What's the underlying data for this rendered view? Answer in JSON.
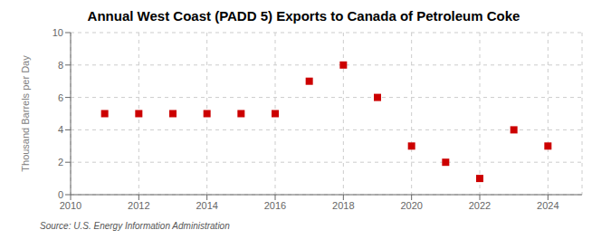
{
  "chart_data": {
    "type": "scatter",
    "title": "Annual West Coast (PADD 5) Exports to Canada of Petroleum Coke",
    "ylabel": "Thousand Barrels per Day",
    "annotation": "Source: U.S. Energy Information Administration",
    "x": [
      2011,
      2012,
      2013,
      2014,
      2015,
      2016,
      2017,
      2018,
      2019,
      2020,
      2021,
      2022,
      2023,
      2024
    ],
    "values": [
      5,
      5,
      5,
      5,
      5,
      5,
      7,
      8,
      6,
      3,
      2,
      1,
      4,
      3
    ],
    "color": "#cc0000",
    "marker": "square",
    "xlim": [
      2010,
      2025
    ],
    "ylim": [
      0,
      10
    ],
    "xticks": [
      2010,
      2012,
      2014,
      2016,
      2018,
      2020,
      2022,
      2024
    ],
    "yticks": [
      0,
      2,
      4,
      6,
      8,
      10
    ],
    "grid": true
  }
}
